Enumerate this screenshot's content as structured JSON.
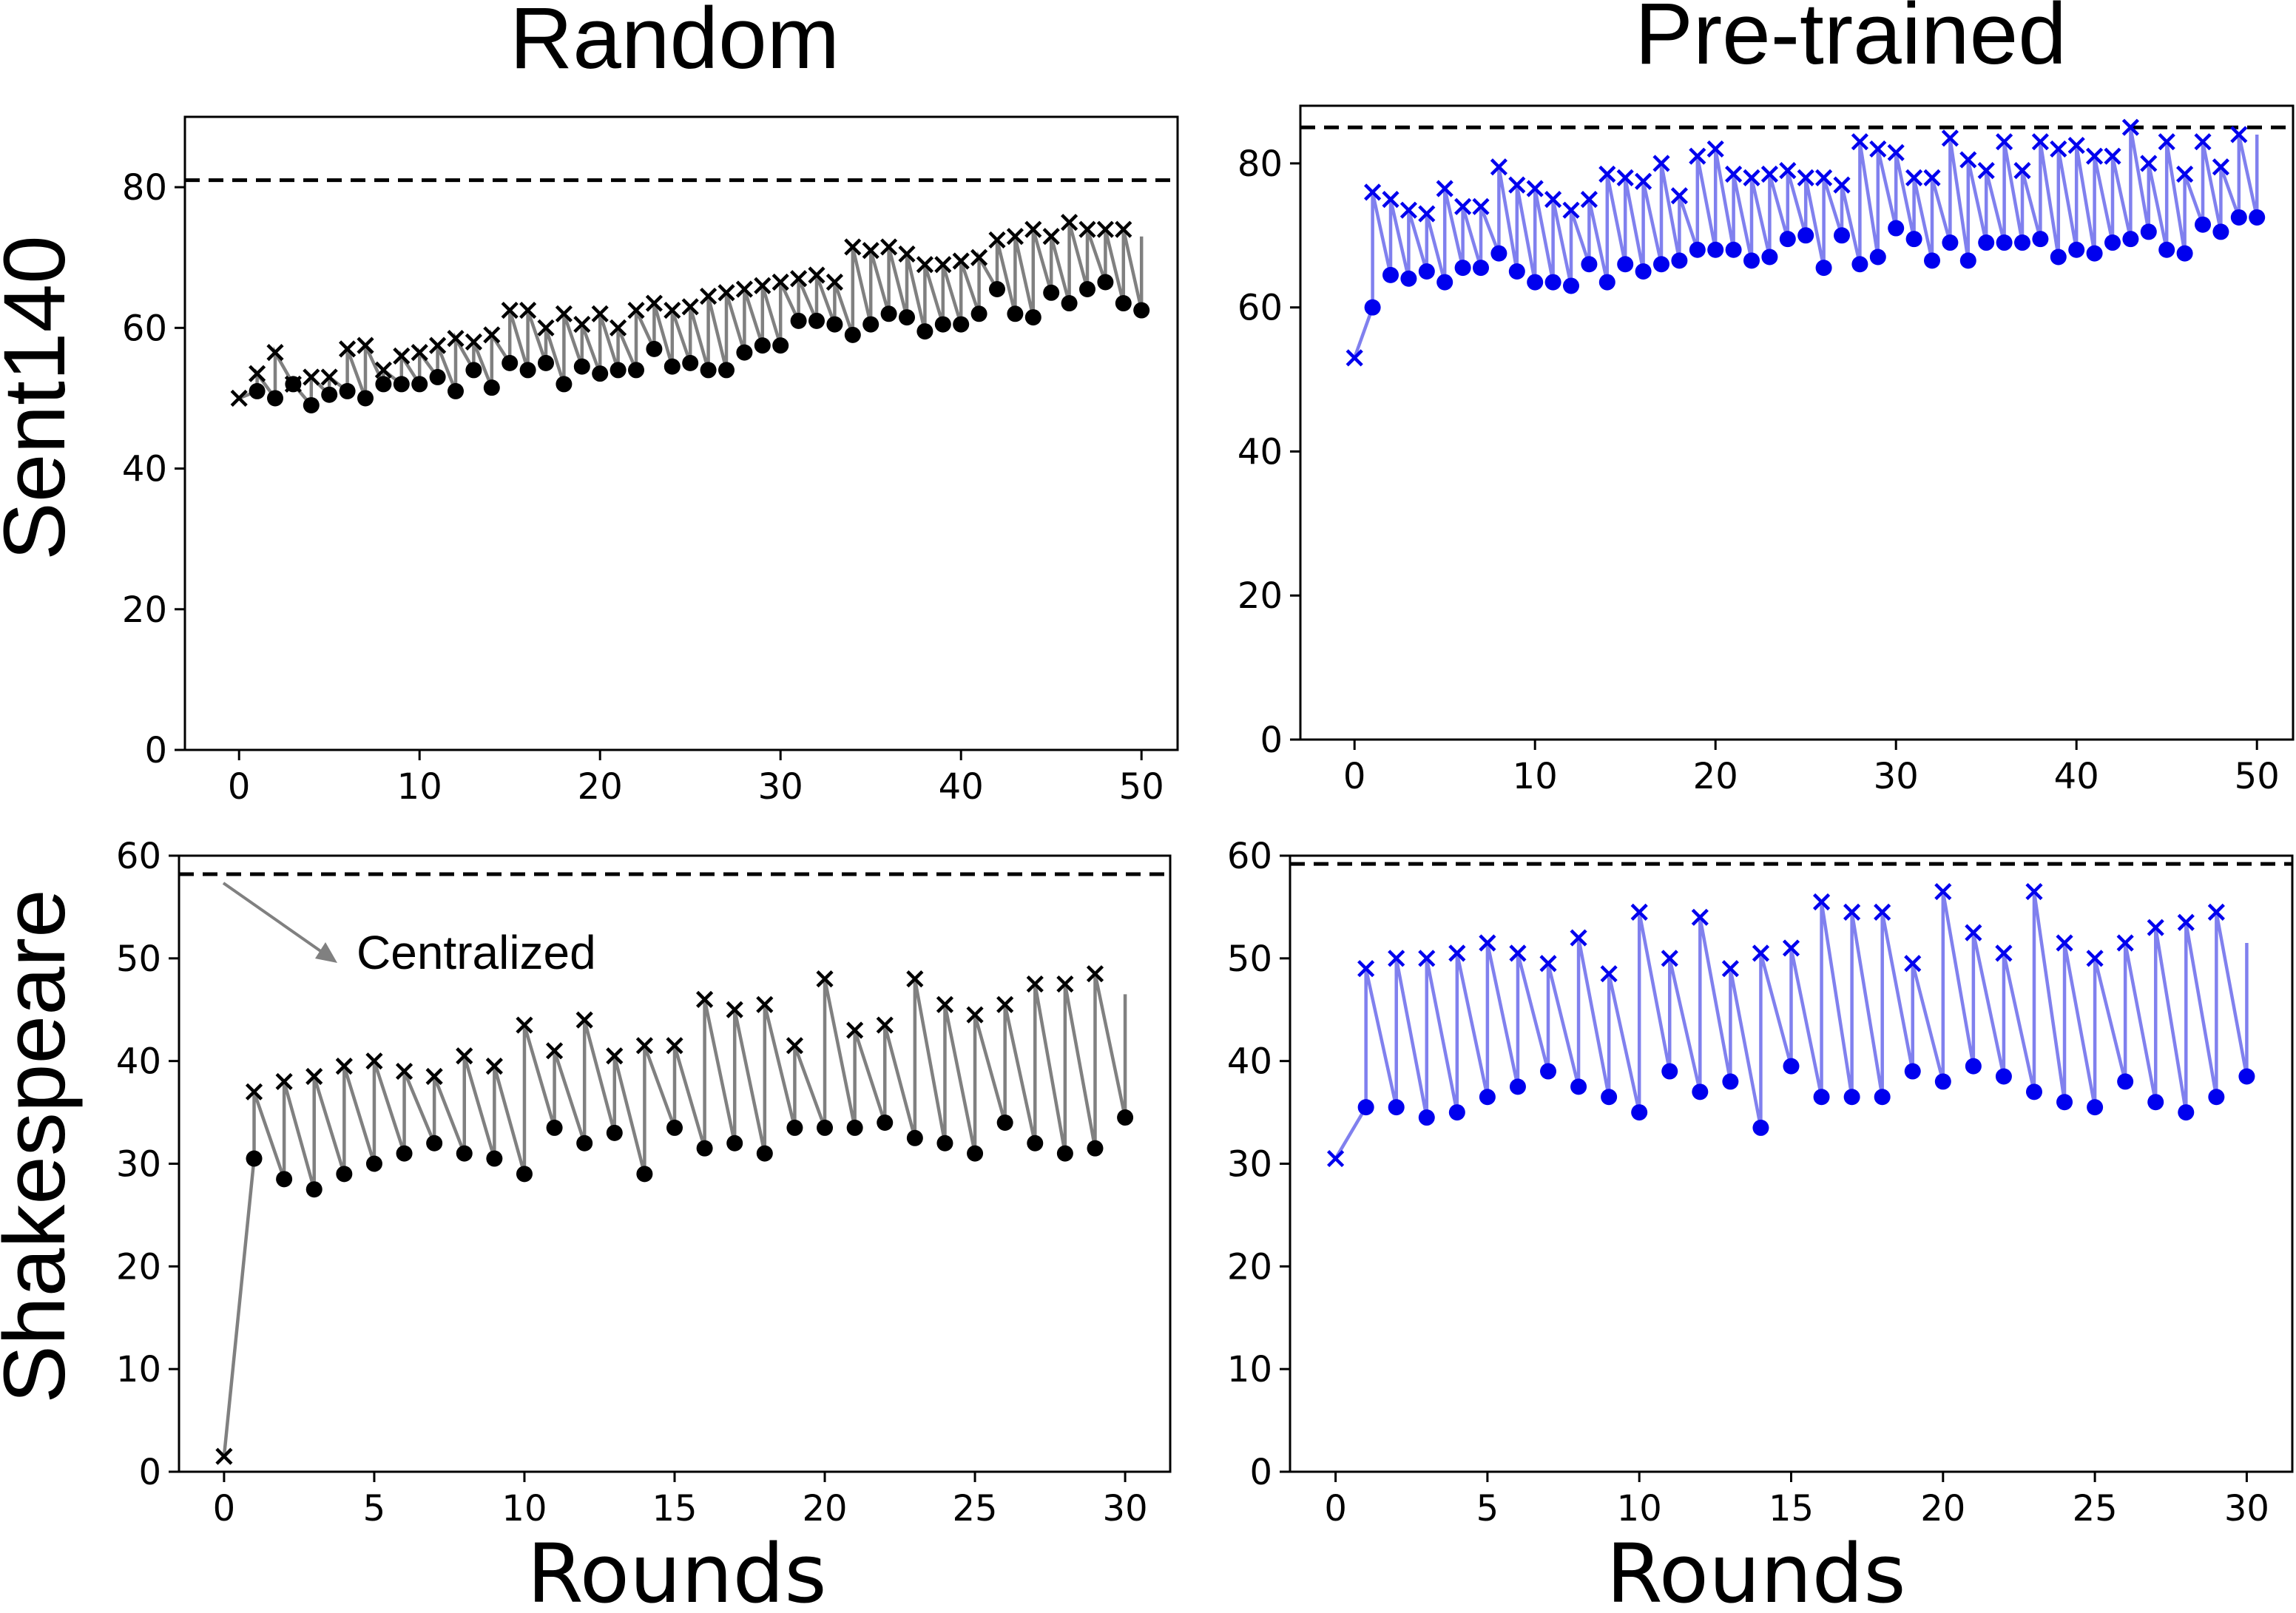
{
  "figure": {
    "col_titles": [
      "Random",
      "Pre-trained"
    ],
    "row_labels": [
      "Sent140",
      "Shakespeare"
    ],
    "x_title": "Rounds"
  },
  "colors": {
    "random_marker": "#000000",
    "random_line": "#808080",
    "pretrained_marker": "#0000ee",
    "pretrained_line": "#8080ee",
    "reference_line": "#000000"
  },
  "chart_data": [
    {
      "id": "sent140-random",
      "type": "line",
      "xlim": [
        -3,
        52
      ],
      "ylim": [
        0,
        90
      ],
      "xticks": [
        0,
        10,
        20,
        30,
        40,
        50
      ],
      "yticks": [
        0,
        20,
        40,
        60,
        80
      ],
      "reference_line": 81,
      "markers": "x = before, dot = after",
      "series": [
        {
          "x": [
            0,
            1,
            2,
            3,
            4,
            5,
            6,
            7,
            8,
            9,
            10,
            11,
            12,
            13,
            14,
            15,
            16,
            17,
            18,
            19,
            20,
            21,
            22,
            23,
            24,
            25,
            26,
            27,
            28,
            29,
            30,
            31,
            32,
            33,
            34,
            35,
            36,
            37,
            38,
            39,
            40,
            41,
            42,
            43,
            44,
            45,
            46,
            47,
            48,
            49
          ],
          "values": [
            50,
            53.5,
            56.5,
            52,
            53,
            53,
            57,
            57.5,
            54,
            56,
            56.5,
            57.5,
            58.5,
            58,
            59,
            62.5,
            62.5,
            60,
            62,
            60.5,
            62,
            60,
            62.5,
            63.5,
            62.5,
            63,
            64.5,
            65,
            65.5,
            66,
            66.5,
            67,
            67.5,
            66.5,
            71.5,
            71,
            71.5,
            70.5,
            69,
            69,
            69.5,
            70,
            72.5,
            73,
            74,
            73,
            75,
            74,
            74,
            74
          ]
        },
        {
          "x": [
            1,
            2,
            3,
            4,
            5,
            6,
            7,
            8,
            9,
            10,
            11,
            12,
            13,
            14,
            15,
            16,
            17,
            18,
            19,
            20,
            21,
            22,
            23,
            24,
            25,
            26,
            27,
            28,
            29,
            30,
            31,
            32,
            33,
            34,
            35,
            36,
            37,
            38,
            39,
            40,
            41,
            42,
            43,
            44,
            45,
            46,
            47,
            48,
            49,
            50
          ],
          "values": [
            51,
            50,
            52,
            49,
            50.5,
            51,
            50,
            52,
            52,
            52,
            53,
            51,
            54,
            51.5,
            55,
            54,
            55,
            52,
            54.5,
            53.5,
            54,
            54,
            57,
            54.5,
            55,
            54,
            54,
            56.5,
            57.5,
            57.5,
            61,
            61,
            60.5,
            59,
            60.5,
            62,
            61.5,
            59.5,
            60.5,
            60.5,
            62,
            65.5,
            62,
            61.5,
            65,
            63.5,
            65.5,
            66.5,
            63.5,
            62.5
          ]
        }
      ]
    },
    {
      "id": "sent140-pretrained",
      "type": "line",
      "xlim": [
        -3,
        52
      ],
      "ylim": [
        0,
        88
      ],
      "xticks": [
        0,
        10,
        20,
        30,
        40,
        50
      ],
      "yticks": [
        0,
        20,
        40,
        60,
        80
      ],
      "reference_line": 85,
      "markers": "x = before, dot = after",
      "series": [
        {
          "x": [
            0,
            1,
            2,
            3,
            4,
            5,
            6,
            7,
            8,
            9,
            10,
            11,
            12,
            13,
            14,
            15,
            16,
            17,
            18,
            19,
            20,
            21,
            22,
            23,
            24,
            25,
            26,
            27,
            28,
            29,
            30,
            31,
            32,
            33,
            34,
            35,
            36,
            37,
            38,
            39,
            40,
            41,
            42,
            43,
            44,
            45,
            46,
            47,
            48,
            49
          ],
          "values": [
            53,
            76,
            75,
            73.5,
            73,
            76.5,
            74,
            74,
            79.5,
            77,
            76.5,
            75,
            73.5,
            75,
            78.5,
            78,
            77.5,
            80,
            75.5,
            81,
            82,
            78.5,
            78,
            78.5,
            79,
            78,
            78,
            77,
            83,
            82,
            81.5,
            78,
            78,
            83.5,
            80.5,
            79,
            83,
            79,
            83,
            82,
            82.5,
            81,
            81,
            85,
            80,
            83,
            78.5,
            83,
            79.5,
            84
          ]
        },
        {
          "x": [
            1,
            2,
            3,
            4,
            5,
            6,
            7,
            8,
            9,
            10,
            11,
            12,
            13,
            14,
            15,
            16,
            17,
            18,
            19,
            20,
            21,
            22,
            23,
            24,
            25,
            26,
            27,
            28,
            29,
            30,
            31,
            32,
            33,
            34,
            35,
            36,
            37,
            38,
            39,
            40,
            41,
            42,
            43,
            44,
            45,
            46,
            47,
            48,
            49,
            50
          ],
          "values": [
            60,
            64.5,
            64,
            65,
            63.5,
            65.5,
            65.5,
            67.5,
            65,
            63.5,
            63.5,
            63,
            66,
            63.5,
            66,
            65,
            66,
            66.5,
            68,
            68,
            68,
            66.5,
            67,
            69.5,
            70,
            65.5,
            70,
            66,
            67,
            71,
            69.5,
            66.5,
            69,
            66.5,
            69,
            69,
            69,
            69.5,
            67,
            68,
            67.5,
            69,
            69.5,
            70.5,
            68,
            67.5,
            71.5,
            70.5,
            72.5,
            72.5
          ]
        }
      ]
    },
    {
      "id": "shakespeare-random",
      "type": "line",
      "xlim": [
        -1.5,
        31.5
      ],
      "ylim": [
        0,
        60
      ],
      "xticks": [
        0,
        5,
        10,
        15,
        20,
        25,
        30
      ],
      "yticks": [
        0,
        10,
        20,
        30,
        40,
        50,
        60
      ],
      "reference_line": 58.2,
      "annotation": "Centralized",
      "markers": "x = before, dot = after",
      "series": [
        {
          "x": [
            0,
            1,
            2,
            3,
            4,
            5,
            6,
            7,
            8,
            9,
            10,
            11,
            12,
            13,
            14,
            15,
            16,
            17,
            18,
            19,
            20,
            21,
            22,
            23,
            24,
            25,
            26,
            27,
            28,
            29
          ],
          "values": [
            1.5,
            37,
            38,
            38.5,
            39.5,
            40,
            39,
            38.5,
            40.5,
            39.5,
            43.5,
            41,
            44,
            40.5,
            41.5,
            41.5,
            46,
            45,
            45.5,
            41.5,
            48,
            43,
            43.5,
            48,
            45.5,
            44.5,
            45.5,
            47.5,
            47.5,
            48.5
          ]
        },
        {
          "x": [
            1,
            2,
            3,
            4,
            5,
            6,
            7,
            8,
            9,
            10,
            11,
            12,
            13,
            14,
            15,
            16,
            17,
            18,
            19,
            20,
            21,
            22,
            23,
            24,
            25,
            26,
            27,
            28,
            29,
            30
          ],
          "values": [
            30.5,
            28.5,
            27.5,
            29,
            30,
            31,
            32,
            31,
            30.5,
            29,
            33.5,
            32,
            33,
            29,
            33.5,
            31.5,
            32,
            31,
            33.5,
            33.5,
            33.5,
            34,
            32.5,
            32,
            31,
            34,
            32,
            31,
            31.5,
            34.5
          ]
        }
      ]
    },
    {
      "id": "shakespeare-pretrained",
      "type": "line",
      "xlim": [
        -1.5,
        31.5
      ],
      "ylim": [
        0,
        60
      ],
      "xticks": [
        0,
        5,
        10,
        15,
        20,
        25,
        30
      ],
      "yticks": [
        0,
        10,
        20,
        30,
        40,
        50,
        60
      ],
      "reference_line": 59.2,
      "markers": "x = before, dot = after",
      "series": [
        {
          "x": [
            0,
            1,
            2,
            3,
            4,
            5,
            6,
            7,
            8,
            9,
            10,
            11,
            12,
            13,
            14,
            15,
            16,
            17,
            18,
            19,
            20,
            21,
            22,
            23,
            24,
            25,
            26,
            27,
            28,
            29
          ],
          "values": [
            30.5,
            49,
            50,
            50,
            50.5,
            51.5,
            50.5,
            49.5,
            52,
            48.5,
            54.5,
            50,
            54,
            49,
            50.5,
            51,
            55.5,
            54.5,
            54.5,
            49.5,
            56.5,
            52.5,
            50.5,
            56.5,
            51.5,
            50,
            51.5,
            53,
            53.5,
            54.5
          ]
        },
        {
          "x": [
            1,
            2,
            3,
            4,
            5,
            6,
            7,
            8,
            9,
            10,
            11,
            12,
            13,
            14,
            15,
            16,
            17,
            18,
            19,
            20,
            21,
            22,
            23,
            24,
            25,
            26,
            27,
            28,
            29,
            30
          ],
          "values": [
            35.5,
            35.5,
            34.5,
            35,
            36.5,
            37.5,
            39,
            37.5,
            36.5,
            35,
            39,
            37,
            38,
            33.5,
            39.5,
            36.5,
            36.5,
            36.5,
            39,
            38,
            39.5,
            38.5,
            37,
            36,
            35.5,
            38,
            36,
            35,
            36.5,
            38.5
          ]
        }
      ]
    }
  ]
}
